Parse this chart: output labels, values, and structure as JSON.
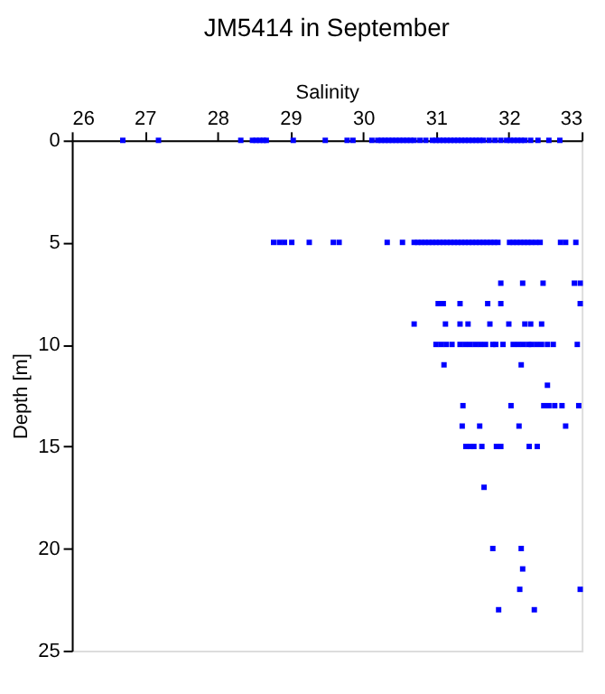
{
  "chart_data": {
    "type": "scatter",
    "title": "JM5414 in September",
    "xlabel": "Salinity",
    "ylabel": "Depth [m]",
    "xlim": [
      26,
      33
    ],
    "xticks": [
      26,
      27,
      28,
      29,
      30,
      31,
      32,
      33
    ],
    "ylim": [
      25,
      0
    ],
    "yticks": [
      0,
      5,
      10,
      15,
      20,
      25
    ],
    "grid": false,
    "marker": "square",
    "series": [
      {
        "color": "#0000ff",
        "x": [
          26.7,
          27.19,
          28.32,
          28.48,
          28.53,
          28.58,
          28.63,
          28.67,
          29.04,
          29.48,
          29.78,
          29.86,
          30.12,
          30.2,
          30.25,
          30.3,
          30.35,
          30.4,
          30.45,
          30.5,
          30.55,
          30.6,
          30.65,
          30.7,
          30.78,
          30.86,
          30.95,
          31.0,
          31.05,
          31.1,
          31.15,
          31.2,
          31.25,
          31.3,
          31.35,
          31.4,
          31.45,
          31.5,
          31.55,
          31.6,
          31.65,
          31.73,
          31.81,
          31.89,
          31.97,
          32.02,
          32.07,
          32.12,
          32.17,
          32.22,
          32.3,
          32.4,
          32.55,
          32.7,
          28.77,
          28.85,
          28.92,
          29.02,
          29.26,
          29.59,
          29.67,
          30.33,
          30.54,
          30.7,
          30.75,
          30.8,
          30.85,
          30.9,
          30.95,
          31.0,
          31.05,
          31.1,
          31.15,
          31.2,
          31.25,
          31.3,
          31.35,
          31.4,
          31.45,
          31.5,
          31.55,
          31.6,
          31.65,
          31.7,
          31.75,
          31.8,
          31.85,
          32.01,
          32.06,
          32.11,
          32.16,
          32.21,
          32.26,
          32.31,
          32.37,
          32.43,
          32.71,
          32.78,
          32.92,
          31.89,
          32.19,
          32.47,
          32.9,
          32.98,
          31.03,
          31.1,
          31.33,
          31.71,
          31.89,
          32.98,
          30.7,
          31.13,
          31.33,
          31.44,
          31.74,
          32.0,
          32.22,
          32.3,
          32.45,
          31.0,
          31.07,
          31.14,
          31.22,
          31.33,
          31.4,
          31.47,
          31.54,
          31.61,
          31.68,
          31.78,
          31.82,
          31.92,
          32.06,
          32.13,
          32.2,
          32.27,
          32.31,
          32.38,
          32.45,
          32.53,
          32.61,
          32.94,
          31.11,
          32.17,
          32.53,
          31.37,
          32.03,
          32.48,
          32.55,
          32.63,
          32.73,
          32.96,
          31.36,
          31.6,
          32.14,
          32.78,
          31.41,
          31.47,
          31.52,
          31.63,
          31.83,
          31.89,
          32.28,
          32.39,
          31.66,
          31.78,
          32.17,
          32.19,
          32.15,
          32.98,
          31.86,
          32.35
        ],
        "values": [
          0,
          0,
          0,
          0,
          0,
          0,
          0,
          0,
          0,
          0,
          0,
          0,
          0,
          0,
          0,
          0,
          0,
          0,
          0,
          0,
          0,
          0,
          0,
          0,
          0,
          0,
          0,
          0,
          0,
          0,
          0,
          0,
          0,
          0,
          0,
          0,
          0,
          0,
          0,
          0,
          0,
          0,
          0,
          0,
          0,
          0,
          0,
          0,
          0,
          0,
          0,
          0,
          0,
          0,
          5,
          5,
          5,
          5,
          5,
          5,
          5,
          5,
          5,
          5,
          5,
          5,
          5,
          5,
          5,
          5,
          5,
          5,
          5,
          5,
          5,
          5,
          5,
          5,
          5,
          5,
          5,
          5,
          5,
          5,
          5,
          5,
          5,
          5,
          5,
          5,
          5,
          5,
          5,
          5,
          5,
          5,
          5,
          5,
          5,
          7,
          7,
          7,
          7,
          7,
          8,
          8,
          8,
          8,
          8,
          8,
          9,
          9,
          9,
          9,
          9,
          9,
          9,
          9,
          9,
          10,
          10,
          10,
          10,
          10,
          10,
          10,
          10,
          10,
          10,
          10,
          10,
          10,
          10,
          10,
          10,
          10,
          10,
          10,
          10,
          10,
          10,
          10,
          11,
          11,
          12,
          13,
          13,
          13,
          13,
          13,
          13,
          13,
          14,
          14,
          14,
          14,
          15,
          15,
          15,
          15,
          15,
          15,
          15,
          15,
          17,
          20,
          20,
          21,
          22,
          22,
          23,
          23
        ]
      }
    ]
  }
}
